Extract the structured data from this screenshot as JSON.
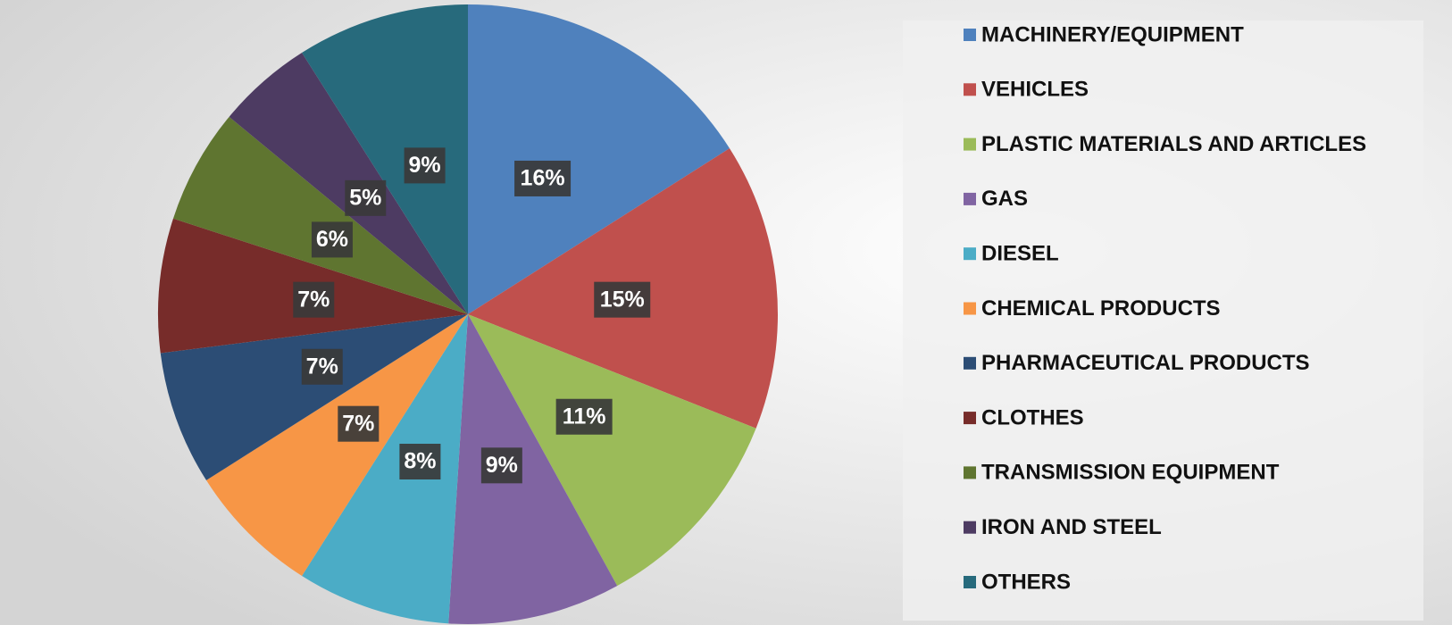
{
  "chart_data": {
    "type": "pie",
    "categories": [
      "MACHINERY/EQUIPMENT",
      "VEHICLES",
      "PLASTIC MATERIALS AND ARTICLES",
      "GAS",
      "DIESEL",
      "CHEMICAL PRODUCTS",
      "PHARMACEUTICAL PRODUCTS",
      "CLOTHES",
      "TRANSMISSION EQUIPMENT",
      "IRON AND STEEL",
      "OTHERS"
    ],
    "values": [
      16,
      15,
      11,
      9,
      8,
      7,
      7,
      7,
      6,
      5,
      9
    ],
    "value_labels": [
      "16%",
      "15%",
      "11%",
      "9%",
      "8%",
      "7%",
      "7%",
      "7%",
      "6%",
      "5%",
      "9%"
    ],
    "colors": [
      "#4f81bd",
      "#c0504d",
      "#9bbb59",
      "#8064a2",
      "#4bacc6",
      "#f79646",
      "#2c4d75",
      "#772c2a",
      "#5f7530",
      "#4d3b62",
      "#276a7c"
    ],
    "legend": "right"
  }
}
